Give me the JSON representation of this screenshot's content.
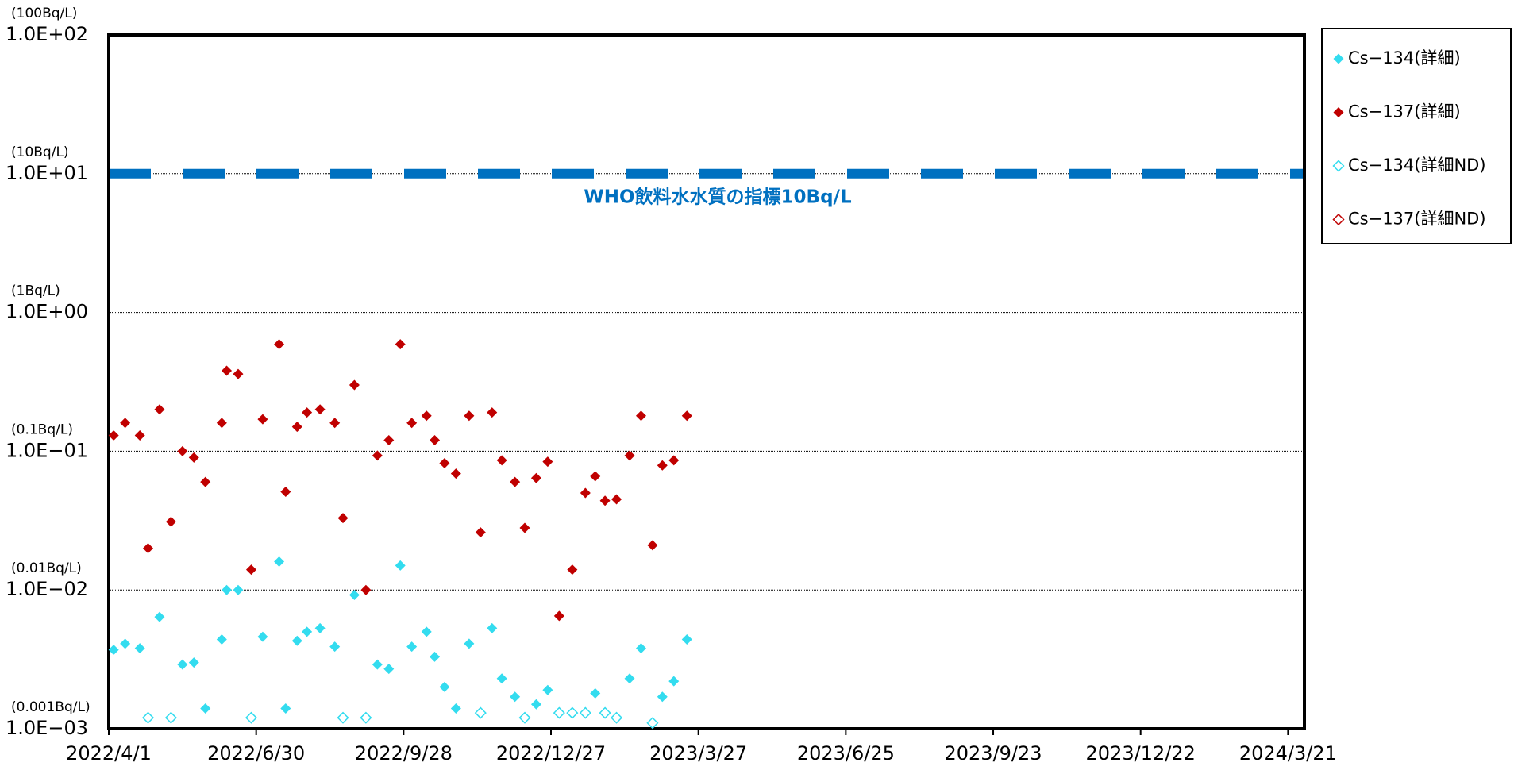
{
  "chart_data": {
    "type": "scatter",
    "log_scale": true,
    "grid": true,
    "legend_position": "right",
    "ylim": [
      0.001,
      100
    ],
    "yticks": [
      {
        "value": 0.001,
        "label": "1.0E−03"
      },
      {
        "value": 0.01,
        "label": "1.0E−02"
      },
      {
        "value": 0.1,
        "label": "1.0E−01"
      },
      {
        "value": 1,
        "label": "1.0E+00"
      },
      {
        "value": 10,
        "label": "1.0E+01"
      },
      {
        "value": 100,
        "label": "1.0E+02"
      }
    ],
    "ytick_notes": [
      "(0.001Bq/L)",
      "(0.01Bq/L)",
      "(0.1Bq/L)",
      "(1Bq/L)",
      "(10Bq/L)",
      "(100Bq/L)"
    ],
    "xlim": [
      "2022/4/1",
      "2024/3/31"
    ],
    "xticks": [
      "2022/4/1",
      "2022/6/30",
      "2022/9/28",
      "2022/12/27",
      "2023/3/27",
      "2023/6/25",
      "2023/9/23",
      "2023/12/22",
      "2024/3/21"
    ],
    "reference_line": {
      "value": 10,
      "label": "WHO飲料水水質の指標10Bq/L",
      "color": "#0070c0"
    },
    "series": [
      {
        "name": "Cs−134(詳細)",
        "color": "#33dcef",
        "filled": true,
        "x": [
          "2022/4/4",
          "2022/4/11",
          "2022/4/20",
          "2022/5/2",
          "2022/5/16",
          "2022/5/23",
          "2022/5/30",
          "2022/6/9",
          "2022/6/12",
          "2022/6/19",
          "2022/7/4",
          "2022/7/14",
          "2022/7/18",
          "2022/7/25",
          "2022/7/31",
          "2022/8/8",
          "2022/8/17",
          "2022/8/29",
          "2022/9/12",
          "2022/9/19",
          "2022/9/26",
          "2022/10/3",
          "2022/10/12",
          "2022/10/17",
          "2022/10/23",
          "2022/10/30",
          "2022/11/7",
          "2022/11/21",
          "2022/11/27",
          "2022/12/5",
          "2022/12/18",
          "2022/12/25",
          "2023/1/23",
          "2023/2/13",
          "2023/2/20",
          "2023/3/5",
          "2023/3/12",
          "2023/3/20"
        ],
        "values": [
          0.0037,
          0.0041,
          0.0038,
          0.0064,
          0.0029,
          0.003,
          0.0014,
          0.0044,
          0.01,
          0.01,
          0.0046,
          0.016,
          0.0014,
          0.0043,
          0.005,
          0.0053,
          0.0039,
          0.0092,
          0.0029,
          0.0027,
          0.015,
          0.0039,
          0.005,
          0.0033,
          0.002,
          0.0014,
          0.0041,
          0.0053,
          0.0023,
          0.0017,
          0.0015,
          0.0019,
          0.0018,
          0.0023,
          0.0038,
          0.0017,
          0.0022,
          0.0044
        ]
      },
      {
        "name": "Cs−137(詳細)",
        "color": "#c00000",
        "filled": true,
        "x": [
          "2022/4/4",
          "2022/4/11",
          "2022/4/20",
          "2022/4/25",
          "2022/5/2",
          "2022/5/9",
          "2022/5/16",
          "2022/5/23",
          "2022/5/30",
          "2022/6/9",
          "2022/6/12",
          "2022/6/19",
          "2022/6/27",
          "2022/7/4",
          "2022/7/14",
          "2022/7/18",
          "2022/7/25",
          "2022/7/31",
          "2022/8/8",
          "2022/8/17",
          "2022/8/22",
          "2022/8/29",
          "2022/9/5",
          "2022/9/12",
          "2022/9/19",
          "2022/9/26",
          "2022/10/3",
          "2022/10/12",
          "2022/10/17",
          "2022/10/23",
          "2022/10/30",
          "2022/11/7",
          "2022/11/14",
          "2022/11/21",
          "2022/11/27",
          "2022/12/5",
          "2022/12/11",
          "2022/12/18",
          "2022/12/25",
          "2023/1/1",
          "2023/1/9",
          "2023/1/17",
          "2023/1/23",
          "2023/1/29",
          "2023/2/5",
          "2023/2/13",
          "2023/2/20",
          "2023/2/27",
          "2023/3/5",
          "2023/3/12",
          "2023/3/20"
        ],
        "values": [
          0.13,
          0.16,
          0.13,
          0.02,
          0.2,
          0.031,
          0.1,
          0.09,
          0.06,
          0.16,
          0.38,
          0.36,
          0.014,
          0.17,
          0.59,
          0.051,
          0.15,
          0.19,
          0.2,
          0.16,
          0.033,
          0.3,
          0.01,
          0.093,
          0.12,
          0.59,
          0.16,
          0.18,
          0.12,
          0.082,
          0.069,
          0.18,
          0.026,
          0.19,
          0.086,
          0.06,
          0.028,
          0.064,
          0.084,
          0.0065,
          0.014,
          0.05,
          0.066,
          0.044,
          0.045,
          0.093,
          0.18,
          0.021,
          0.079,
          0.086,
          0.18
        ]
      },
      {
        "name": "Cs−134(詳細ND)",
        "color": "#33dcef",
        "filled": false,
        "x": [
          "2022/4/25",
          "2022/5/9",
          "2022/6/27",
          "2022/8/22",
          "2022/9/5",
          "2022/11/14",
          "2022/12/11",
          "2023/1/1",
          "2023/1/9",
          "2023/1/17",
          "2023/1/29",
          "2023/2/5",
          "2023/2/27"
        ],
        "values": [
          0.0012,
          0.0012,
          0.0012,
          0.0012,
          0.0012,
          0.0013,
          0.0012,
          0.0013,
          0.0013,
          0.0013,
          0.0013,
          0.0012,
          0.0011
        ]
      },
      {
        "name": "Cs−137(詳細ND)",
        "color": "#c00000",
        "filled": false,
        "x": [],
        "values": []
      }
    ]
  }
}
